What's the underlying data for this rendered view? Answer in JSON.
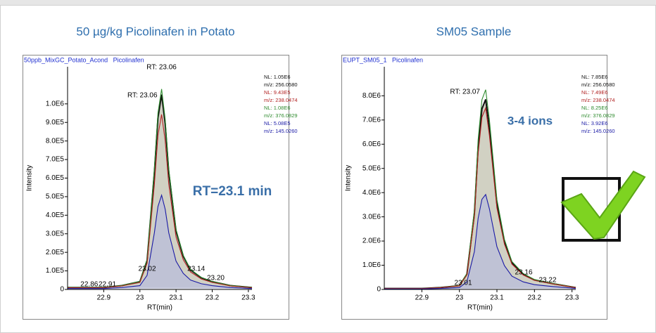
{
  "chart_data": [
    {
      "type": "line",
      "title": "50 µg/kg Picolinafen in Potato",
      "subtitle": "50ppb_MixGC_Potato_Acond   Picolinafen",
      "y_label": "Intensity",
      "x_label": "RT(min)",
      "x": [
        22.8,
        22.85,
        22.9,
        22.95,
        23.0,
        23.02,
        23.04,
        23.05,
        23.06,
        23.07,
        23.08,
        23.1,
        23.12,
        23.14,
        23.17,
        23.2,
        23.25,
        23.31
      ],
      "series": [
        {
          "name": "m/z: 256.0580",
          "nl": "NL: 1.05E6",
          "color": "#111111",
          "fill": "#c9c9b9",
          "values": [
            10500,
            10500,
            10500,
            21000,
            42000,
            157500,
            630000,
            924000,
            1050000,
            892500,
            630000,
            315000,
            178500,
            105000,
            63000,
            42000,
            21000,
            10500
          ]
        },
        {
          "name": "m/z: 238.0474",
          "nl": "NL: 9.43E5",
          "color": "#b22222",
          "values": [
            9430,
            9430,
            9430,
            18860,
            37720,
            141450,
            565800,
            829840,
            943000,
            801550,
            565800,
            282900,
            160310,
            94300,
            56580,
            37720,
            18860,
            9430
          ]
        },
        {
          "name": "m/z: 376.0829",
          "nl": "NL: 1.08E6",
          "color": "#2e8b2e",
          "values": [
            10800,
            10800,
            10800,
            21600,
            43200,
            162000,
            648000,
            950400,
            1080000,
            918000,
            648000,
            324000,
            183600,
            108000,
            64800,
            43200,
            21600,
            10800
          ]
        },
        {
          "name": "m/z: 145.0260",
          "nl": "NL: 5.08E5",
          "color": "#1a1aa6",
          "fill": "#bcc0d8",
          "values": [
            5080,
            5080,
            5080,
            10160,
            20320,
            76200,
            304800,
            447040,
            508000,
            431800,
            304800,
            152400,
            86360,
            50800,
            30480,
            20320,
            10160,
            5080
          ]
        }
      ],
      "xlim": [
        22.8,
        23.31
      ],
      "ylim": [
        0,
        1200000
      ],
      "xticks": [
        22.9,
        23.0,
        23.1,
        23.2,
        23.3
      ],
      "yticks": [
        0,
        {
          "value": 100000,
          "label": "1.0E5"
        },
        {
          "value": 200000,
          "label": "2.0E5"
        },
        {
          "value": 300000,
          "label": "3.0E5"
        },
        {
          "value": 400000,
          "label": "4.0E5"
        },
        {
          "value": 500000,
          "label": "5.0E5"
        },
        {
          "value": 600000,
          "label": "6.0E5"
        },
        {
          "value": 700000,
          "label": "7.0E5"
        },
        {
          "value": 800000,
          "label": "8.0E5"
        },
        {
          "value": 900000,
          "label": "9.0E5"
        },
        {
          "value": 1000000,
          "label": "1.0E6"
        }
      ],
      "peak_labels": [
        {
          "x": 23.06,
          "label": "RT: 23.06"
        },
        {
          "x": 23.06,
          "label": "RT: 23.06"
        },
        {
          "x": 23.02,
          "label": "23.02"
        },
        {
          "x": 23.14,
          "label": "23.14"
        },
        {
          "x": 23.2,
          "label": "23.20"
        },
        {
          "x": 22.86,
          "label": "22.86"
        },
        {
          "x": 22.91,
          "label": "22.91"
        }
      ],
      "callout": "RT=23.1 min"
    },
    {
      "type": "line",
      "title": "SM05 Sample",
      "subtitle": "EUPT_SM05_1   Picolinafen",
      "y_label": "Intensity",
      "x_label": "RT(min)",
      "x": [
        22.8,
        22.85,
        22.9,
        22.95,
        23.0,
        23.02,
        23.04,
        23.05,
        23.06,
        23.07,
        23.08,
        23.1,
        23.12,
        23.14,
        23.17,
        23.2,
        23.25,
        23.31
      ],
      "series": [
        {
          "name": "m/z: 256.0580",
          "nl": "NL: 7.85E6",
          "color": "#111111",
          "fill": "#c9c9b9",
          "values": [
            39250,
            39250,
            39250,
            78500,
            157000,
            628000,
            3140000,
            5887500,
            7457500,
            7850000,
            6672500,
            3532500,
            1962500,
            1099000,
            628000,
            392500,
            235500,
            78500
          ]
        },
        {
          "name": "m/z: 238.0474",
          "nl": "NL: 7.49E6",
          "color": "#b22222",
          "values": [
            37450,
            37450,
            37450,
            74900,
            149800,
            599200,
            2996000,
            5617500,
            7115500,
            7490000,
            6366500,
            3370500,
            1872500,
            1048600,
            599200,
            374500,
            224700,
            74900
          ]
        },
        {
          "name": "m/z: 376.0829",
          "nl": "NL: 8.25E6",
          "color": "#2e8b2e",
          "values": [
            41250,
            41250,
            41250,
            82500,
            165000,
            660000,
            3300000,
            6187500,
            7837500,
            8250000,
            7012500,
            3712500,
            2062500,
            1155000,
            660000,
            412500,
            247500,
            82500
          ]
        },
        {
          "name": "m/z: 145.0260",
          "nl": "NL: 3.92E6",
          "color": "#1a1aa6",
          "fill": "#bcc0d8",
          "values": [
            19600,
            19600,
            19600,
            39200,
            78400,
            313600,
            1568000,
            2940000,
            3724000,
            3920000,
            3332000,
            1764000,
            980000,
            548800,
            313600,
            196000,
            117600,
            39200
          ]
        }
      ],
      "xlim": [
        22.8,
        23.31
      ],
      "ylim": [
        0,
        9200000
      ],
      "xticks": [
        22.9,
        23.0,
        23.1,
        23.2,
        23.3
      ],
      "yticks": [
        0,
        {
          "value": 1000000,
          "label": "1.0E6"
        },
        {
          "value": 2000000,
          "label": "2.0E6"
        },
        {
          "value": 3000000,
          "label": "3.0E6"
        },
        {
          "value": 4000000,
          "label": "4.0E6"
        },
        {
          "value": 5000000,
          "label": "5.0E6"
        },
        {
          "value": 6000000,
          "label": "6.0E6"
        },
        {
          "value": 7000000,
          "label": "7.0E6"
        },
        {
          "value": 8000000,
          "label": "8.0E6"
        }
      ],
      "peak_labels": [
        {
          "x": 23.07,
          "label": "RT: 23.07"
        },
        {
          "x": 23.01,
          "label": "23.01"
        },
        {
          "x": 23.16,
          "label": "23.16"
        },
        {
          "x": 23.22,
          "label": "23.22"
        }
      ],
      "callout": "3-4 ions"
    }
  ]
}
